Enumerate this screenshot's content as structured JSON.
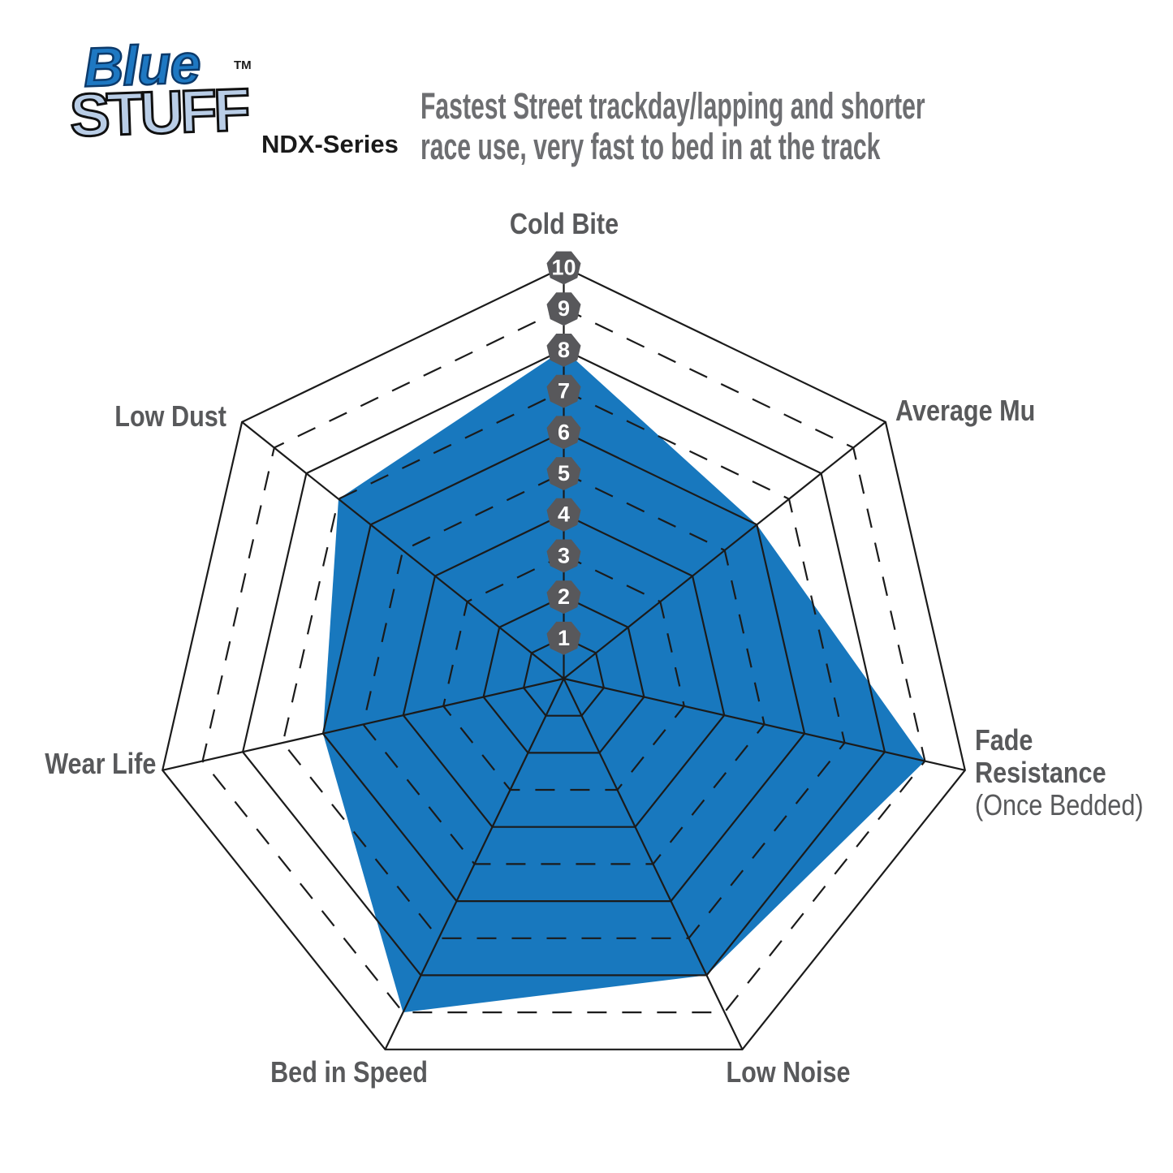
{
  "header": {
    "logo": {
      "word1": "Blue",
      "word2": "STUFF",
      "tm": "TM",
      "series_label": "NDX-Series"
    },
    "description_line1": "Fastest Street trackday/lapping and shorter",
    "description_line2": "race use, very fast to bed in at the track"
  },
  "chart_data": {
    "type": "radar",
    "axes": [
      {
        "label": "Cold Bite",
        "value": 8
      },
      {
        "label": "Average Mu",
        "value": 6
      },
      {
        "label": "Fade Resistance",
        "sublabel": "(Once Bedded)",
        "value": 9
      },
      {
        "label": "Low Noise",
        "value": 8
      },
      {
        "label": "Bed in Speed",
        "value": 9
      },
      {
        "label": "Wear Life",
        "value": 6
      },
      {
        "label": "Low Dust",
        "value": 7
      }
    ],
    "scale": {
      "min": 0,
      "max": 10,
      "tick_labels": [
        "1",
        "2",
        "3",
        "4",
        "5",
        "6",
        "7",
        "8",
        "9",
        "10"
      ]
    },
    "grid": {
      "rings": 10,
      "dashed_rings": [
        3,
        5,
        7,
        9
      ],
      "legend_position": "none"
    },
    "colors": {
      "fill_blue": "#1878BE",
      "grid_line": "#1b1b1b",
      "badge_gray": "#58585B",
      "badge_text": "#FFFFFF",
      "label_gray": "#58595B",
      "description_gray": "#6D6E71",
      "logo_blue": "#1E78C2",
      "logo_light_blue": "#B9CDE6"
    }
  }
}
